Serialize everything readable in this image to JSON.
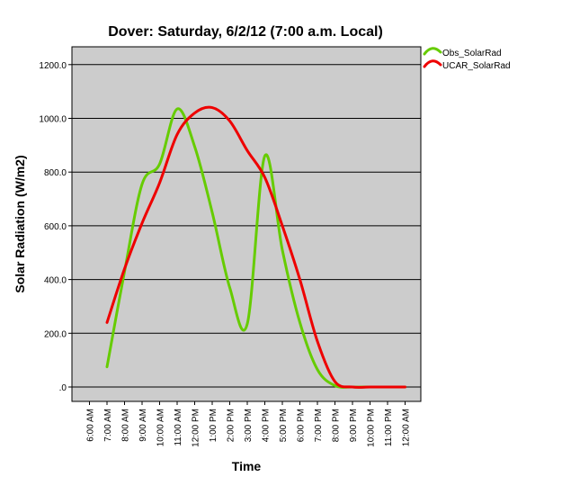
{
  "chart_data": {
    "type": "line",
    "title": "Dover: Saturday, 6/2/12 (7:00 a.m. Local)",
    "xlabel": "Time",
    "ylabel": "Solar Radiation (W/m2)",
    "categories": [
      "6:00 AM",
      "7:00 AM",
      "8:00 AM",
      "9:00 AM",
      "10:00 AM",
      "11:00 AM",
      "12:00 PM",
      "1:00 PM",
      "2:00 PM",
      "3:00 PM",
      "4:00 PM",
      "5:00 PM",
      "6:00 PM",
      "7:00 PM",
      "8:00 PM",
      "9:00 PM",
      "10:00 PM",
      "11:00 PM",
      "12:00 AM"
    ],
    "yticks": [
      ".0",
      "200.0",
      "400.0",
      "600.0",
      "800.0",
      "1000.0",
      "1200.0"
    ],
    "ylim": [
      0,
      1260
    ],
    "grid": true,
    "legend_position": "top-right",
    "series": [
      {
        "name": "Obs_SolarRad",
        "color": "#66cc00",
        "values": [
          null,
          75,
          430,
          755,
          830,
          1035,
          895,
          650,
          370,
          235,
          860,
          510,
          240,
          65,
          5,
          0,
          0,
          0,
          0
        ]
      },
      {
        "name": "UCAR_SolarRad",
        "color": "#ee0000",
        "values": [
          null,
          240,
          440,
          610,
          760,
          940,
          1020,
          1040,
          990,
          880,
          780,
          600,
          400,
          170,
          20,
          0,
          0,
          0,
          0
        ]
      }
    ]
  }
}
